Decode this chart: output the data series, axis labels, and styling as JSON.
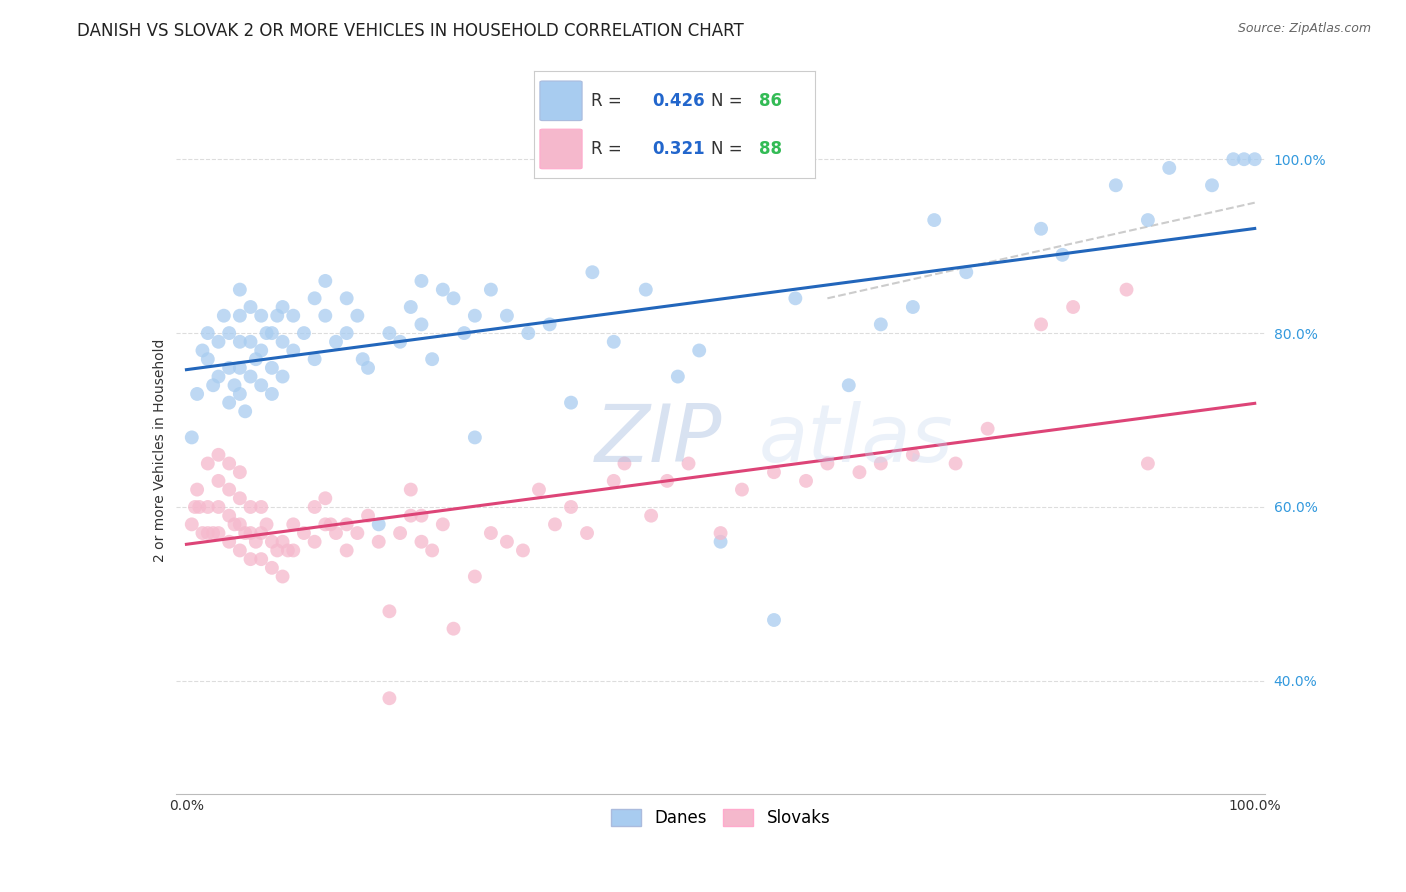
{
  "title": "DANISH VS SLOVAK 2 OR MORE VEHICLES IN HOUSEHOLD CORRELATION CHART",
  "source": "Source: ZipAtlas.com",
  "ylabel": "2 or more Vehicles in Household",
  "xlim": [
    -0.01,
    1.01
  ],
  "ylim": [
    0.27,
    1.06
  ],
  "yticks": [
    0.4,
    0.6,
    0.8,
    1.0
  ],
  "ytick_labels": [
    "40.0%",
    "60.0%",
    "80.0%",
    "100.0%"
  ],
  "xticks": [
    0.0,
    0.1,
    0.2,
    0.3,
    0.4,
    0.5,
    0.6,
    0.7,
    0.8,
    0.9,
    1.0
  ],
  "danes_R": 0.426,
  "danes_N": 86,
  "slovaks_R": 0.321,
  "slovaks_N": 88,
  "danes_color": "#A8CCF0",
  "slovaks_color": "#F5B8CC",
  "danes_line_color": "#2266BB",
  "slovaks_line_color": "#DD4477",
  "dashed_line_color": "#CCCCCC",
  "legend_R_color": "#2266CC",
  "legend_N_color": "#33BB55",
  "danes_x": [
    0.005,
    0.01,
    0.015,
    0.02,
    0.02,
    0.025,
    0.03,
    0.03,
    0.035,
    0.04,
    0.04,
    0.04,
    0.045,
    0.05,
    0.05,
    0.05,
    0.05,
    0.05,
    0.055,
    0.06,
    0.06,
    0.06,
    0.065,
    0.07,
    0.07,
    0.07,
    0.075,
    0.08,
    0.08,
    0.08,
    0.085,
    0.09,
    0.09,
    0.09,
    0.1,
    0.1,
    0.11,
    0.12,
    0.12,
    0.13,
    0.13,
    0.14,
    0.15,
    0.15,
    0.16,
    0.165,
    0.17,
    0.18,
    0.19,
    0.2,
    0.21,
    0.22,
    0.22,
    0.23,
    0.24,
    0.25,
    0.26,
    0.27,
    0.285,
    0.3,
    0.32,
    0.34,
    0.36,
    0.38,
    0.4,
    0.43,
    0.46,
    0.48,
    0.5,
    0.55,
    0.57,
    0.62,
    0.65,
    0.68,
    0.7,
    0.73,
    0.8,
    0.82,
    0.87,
    0.9,
    0.92,
    0.96,
    0.98,
    0.99,
    1.0,
    0.27
  ],
  "danes_y": [
    0.68,
    0.73,
    0.78,
    0.77,
    0.8,
    0.74,
    0.75,
    0.79,
    0.82,
    0.72,
    0.76,
    0.8,
    0.74,
    0.73,
    0.76,
    0.79,
    0.82,
    0.85,
    0.71,
    0.75,
    0.79,
    0.83,
    0.77,
    0.74,
    0.78,
    0.82,
    0.8,
    0.73,
    0.76,
    0.8,
    0.82,
    0.75,
    0.79,
    0.83,
    0.78,
    0.82,
    0.8,
    0.77,
    0.84,
    0.82,
    0.86,
    0.79,
    0.8,
    0.84,
    0.82,
    0.77,
    0.76,
    0.58,
    0.8,
    0.79,
    0.83,
    0.81,
    0.86,
    0.77,
    0.85,
    0.84,
    0.8,
    0.82,
    0.85,
    0.82,
    0.8,
    0.81,
    0.72,
    0.87,
    0.79,
    0.85,
    0.75,
    0.78,
    0.56,
    0.47,
    0.84,
    0.74,
    0.81,
    0.83,
    0.93,
    0.87,
    0.92,
    0.89,
    0.97,
    0.93,
    0.99,
    0.97,
    1.0,
    1.0,
    1.0,
    0.68
  ],
  "slovaks_x": [
    0.005,
    0.008,
    0.01,
    0.012,
    0.015,
    0.02,
    0.02,
    0.02,
    0.025,
    0.03,
    0.03,
    0.03,
    0.03,
    0.04,
    0.04,
    0.04,
    0.04,
    0.045,
    0.05,
    0.05,
    0.05,
    0.05,
    0.055,
    0.06,
    0.06,
    0.06,
    0.065,
    0.07,
    0.07,
    0.07,
    0.075,
    0.08,
    0.08,
    0.085,
    0.09,
    0.09,
    0.095,
    0.1,
    0.1,
    0.11,
    0.12,
    0.12,
    0.13,
    0.13,
    0.135,
    0.14,
    0.15,
    0.15,
    0.16,
    0.17,
    0.18,
    0.19,
    0.19,
    0.2,
    0.21,
    0.21,
    0.22,
    0.22,
    0.23,
    0.24,
    0.25,
    0.27,
    0.285,
    0.3,
    0.315,
    0.33,
    0.345,
    0.36,
    0.375,
    0.4,
    0.41,
    0.435,
    0.45,
    0.47,
    0.5,
    0.52,
    0.55,
    0.58,
    0.6,
    0.63,
    0.65,
    0.68,
    0.72,
    0.75,
    0.8,
    0.83,
    0.88,
    0.9
  ],
  "slovaks_y": [
    0.58,
    0.6,
    0.62,
    0.6,
    0.57,
    0.57,
    0.6,
    0.65,
    0.57,
    0.57,
    0.6,
    0.63,
    0.66,
    0.56,
    0.59,
    0.62,
    0.65,
    0.58,
    0.55,
    0.58,
    0.61,
    0.64,
    0.57,
    0.54,
    0.57,
    0.6,
    0.56,
    0.54,
    0.57,
    0.6,
    0.58,
    0.53,
    0.56,
    0.55,
    0.52,
    0.56,
    0.55,
    0.55,
    0.58,
    0.57,
    0.56,
    0.6,
    0.58,
    0.61,
    0.58,
    0.57,
    0.55,
    0.58,
    0.57,
    0.59,
    0.56,
    0.38,
    0.48,
    0.57,
    0.59,
    0.62,
    0.56,
    0.59,
    0.55,
    0.58,
    0.46,
    0.52,
    0.57,
    0.56,
    0.55,
    0.62,
    0.58,
    0.6,
    0.57,
    0.63,
    0.65,
    0.59,
    0.63,
    0.65,
    0.57,
    0.62,
    0.64,
    0.63,
    0.65,
    0.64,
    0.65,
    0.66,
    0.65,
    0.69,
    0.81,
    0.83,
    0.85,
    0.65
  ],
  "watermark_zip": "ZIP",
  "watermark_atlas": "atlas",
  "background_color": "#FFFFFF",
  "grid_color": "#DDDDDD",
  "title_fontsize": 12,
  "axis_label_fontsize": 10,
  "tick_fontsize": 10,
  "marker_size": 100
}
